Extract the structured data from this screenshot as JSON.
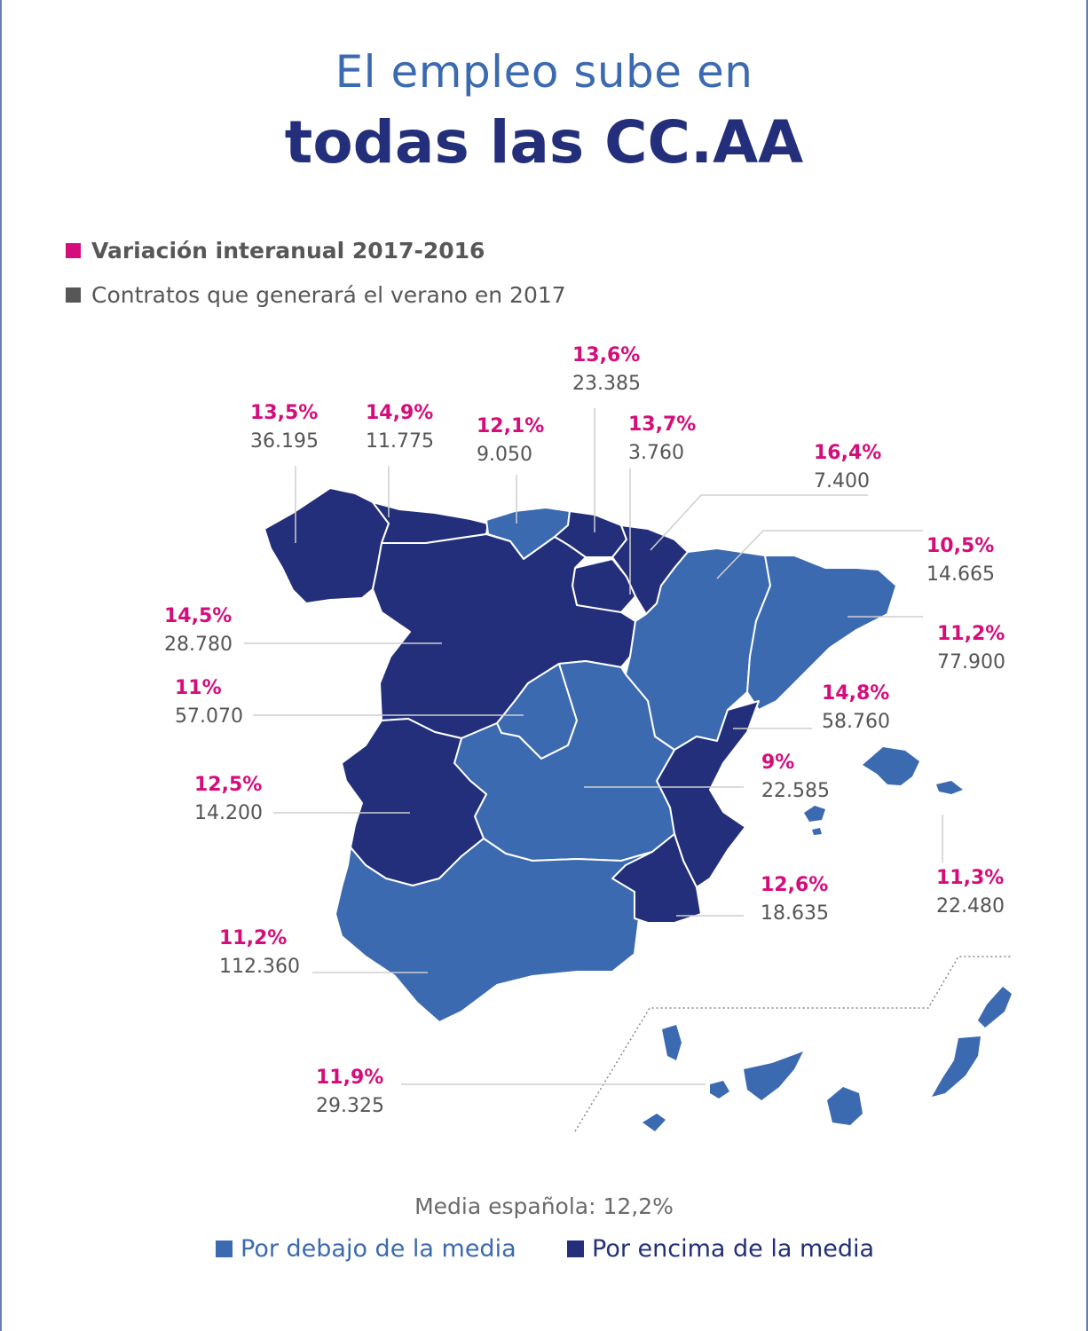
{
  "title": {
    "line1": "El empleo sube en",
    "line2": "todas las CC.AA"
  },
  "legend": {
    "variation_label": "Variación interanual 2017-2016",
    "contracts_label": "Contratos que generará el verano en 2017",
    "variation_color": "#d50d7b",
    "contracts_color": "#575757"
  },
  "colors": {
    "below_media": "#3b6ab1",
    "above_media": "#232f7a",
    "percent": "#d50d7b"
  },
  "regions": [
    {
      "id": "galicia",
      "pct": "13,5%",
      "contracts": "36.195",
      "category": "above"
    },
    {
      "id": "asturias",
      "pct": "14,9%",
      "contracts": "11.775",
      "category": "above"
    },
    {
      "id": "cantabria",
      "pct": "12,1%",
      "contracts": "9.050",
      "category": "below"
    },
    {
      "id": "pais-vasco",
      "pct": "13,6%",
      "contracts": "23.385",
      "category": "above"
    },
    {
      "id": "la-rioja",
      "pct": "13,7%",
      "contracts": "3.760",
      "category": "above"
    },
    {
      "id": "navarra",
      "pct": "16,4%",
      "contracts": "7.400",
      "category": "above"
    },
    {
      "id": "aragon",
      "pct": "10,5%",
      "contracts": "14.665",
      "category": "below"
    },
    {
      "id": "cataluna",
      "pct": "11,2%",
      "contracts": "77.900",
      "category": "below"
    },
    {
      "id": "castilla-y-leon",
      "pct": "14,5%",
      "contracts": "28.780",
      "category": "above"
    },
    {
      "id": "madrid",
      "pct": "11%",
      "contracts": "57.070",
      "category": "below"
    },
    {
      "id": "comunidad-valenciana",
      "pct": "14,8%",
      "contracts": "58.760",
      "category": "above"
    },
    {
      "id": "castilla-la-mancha",
      "pct": "9%",
      "contracts": "22.585",
      "category": "below"
    },
    {
      "id": "extremadura",
      "pct": "12,5%",
      "contracts": "14.200",
      "category": "above"
    },
    {
      "id": "murcia",
      "pct": "12,6%",
      "contracts": "18.635",
      "category": "above"
    },
    {
      "id": "baleares",
      "pct": "11,3%",
      "contracts": "22.480",
      "category": "below"
    },
    {
      "id": "andalucia",
      "pct": "11,2%",
      "contracts": "112.360",
      "category": "below"
    },
    {
      "id": "canarias",
      "pct": "11,9%",
      "contracts": "29.325",
      "category": "below"
    }
  ],
  "footer": {
    "media": "Media española: 12,2%",
    "below_label": "Por debajo de la media",
    "above_label": "Por encima de la media"
  }
}
